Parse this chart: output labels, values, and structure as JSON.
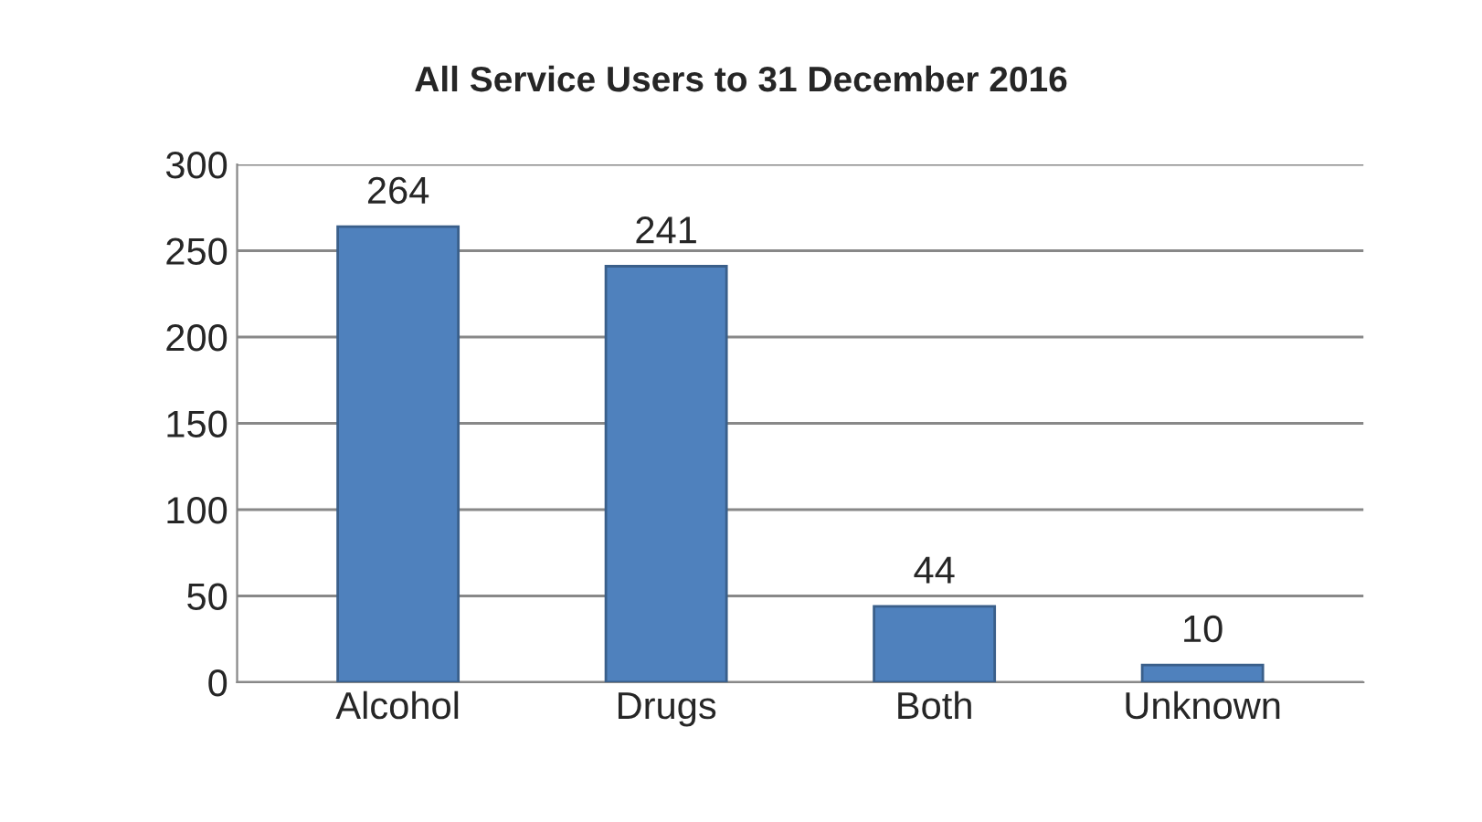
{
  "chart_data": {
    "type": "bar",
    "title": "All Service Users to 31 December 2016",
    "categories": [
      "Alcohol",
      "Drugs",
      "Both",
      "Unknown"
    ],
    "values": [
      264,
      241,
      44,
      10
    ],
    "color": "#4f81bd",
    "ylim": [
      0,
      300
    ],
    "yticks": [
      0,
      50,
      100,
      150,
      200,
      250,
      300
    ],
    "grid": "y",
    "data_labels": true,
    "legend": false
  }
}
